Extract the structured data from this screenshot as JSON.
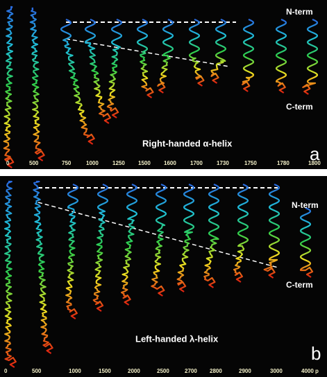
{
  "panels": [
    {
      "n_term": "N-term",
      "c_term": "C-term",
      "caption": "Right-handed α-helix",
      "letter": "a",
      "times": [
        "0",
        "500",
        "750",
        "1000",
        "1250",
        "1500",
        "1600",
        "1700",
        "1730",
        "1750",
        "1780",
        "1800"
      ]
    },
    {
      "n_term": "N-term",
      "c_term": "C-term",
      "caption": "Left-handed λ-helix",
      "letter": "b",
      "times": [
        "0",
        "500",
        "1000",
        "1500",
        "2000",
        "2500",
        "2700",
        "2800",
        "2900",
        "3000",
        "4000 p"
      ]
    }
  ]
}
